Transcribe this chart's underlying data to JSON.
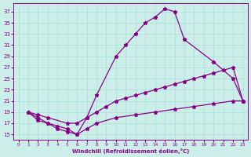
{
  "xlabel": "Windchill (Refroidissement éolien,°C)",
  "ylabel": "",
  "bg_color": "#cceee8",
  "grid_color": "#aadddd",
  "line_color": "#880088",
  "xlim": [
    -0.5,
    23.5
  ],
  "ylim": [
    14,
    38.5
  ],
  "xticks": [
    0,
    1,
    2,
    3,
    4,
    5,
    6,
    7,
    8,
    9,
    10,
    11,
    12,
    13,
    14,
    15,
    16,
    17,
    18,
    19,
    20,
    21,
    22,
    23
  ],
  "yticks": [
    15,
    17,
    19,
    21,
    23,
    25,
    27,
    29,
    31,
    33,
    35,
    37
  ],
  "curve1_x": [
    1,
    2,
    3,
    4,
    5,
    6,
    7,
    8,
    10,
    11,
    12,
    13,
    14,
    15,
    16,
    17,
    20,
    22,
    23
  ],
  "curve1_y": [
    19,
    18,
    17,
    16,
    15.5,
    15,
    18,
    22,
    29,
    31,
    33,
    35,
    36,
    37.5,
    37,
    32,
    28,
    25,
    21
  ],
  "curve2_x": [
    1,
    2,
    3,
    5,
    6,
    7,
    8,
    9,
    10,
    11,
    12,
    13,
    14,
    15,
    16,
    17,
    18,
    19,
    20,
    21,
    22,
    23
  ],
  "curve2_y": [
    19,
    18.5,
    18,
    17,
    17,
    18,
    19,
    20,
    21,
    21.5,
    22,
    22.5,
    23,
    23.5,
    24,
    24.5,
    25,
    25.5,
    26,
    26.5,
    27,
    21
  ],
  "curve3_x": [
    1,
    2,
    3,
    4,
    5,
    6,
    7,
    8,
    10,
    12,
    14,
    16,
    18,
    20,
    22,
    23
  ],
  "curve3_y": [
    19,
    17.5,
    17,
    16.5,
    16,
    15,
    16,
    17,
    18,
    18.5,
    19,
    19.5,
    20,
    20.5,
    21,
    21
  ],
  "figsize": [
    3.2,
    2.0
  ],
  "dpi": 100
}
